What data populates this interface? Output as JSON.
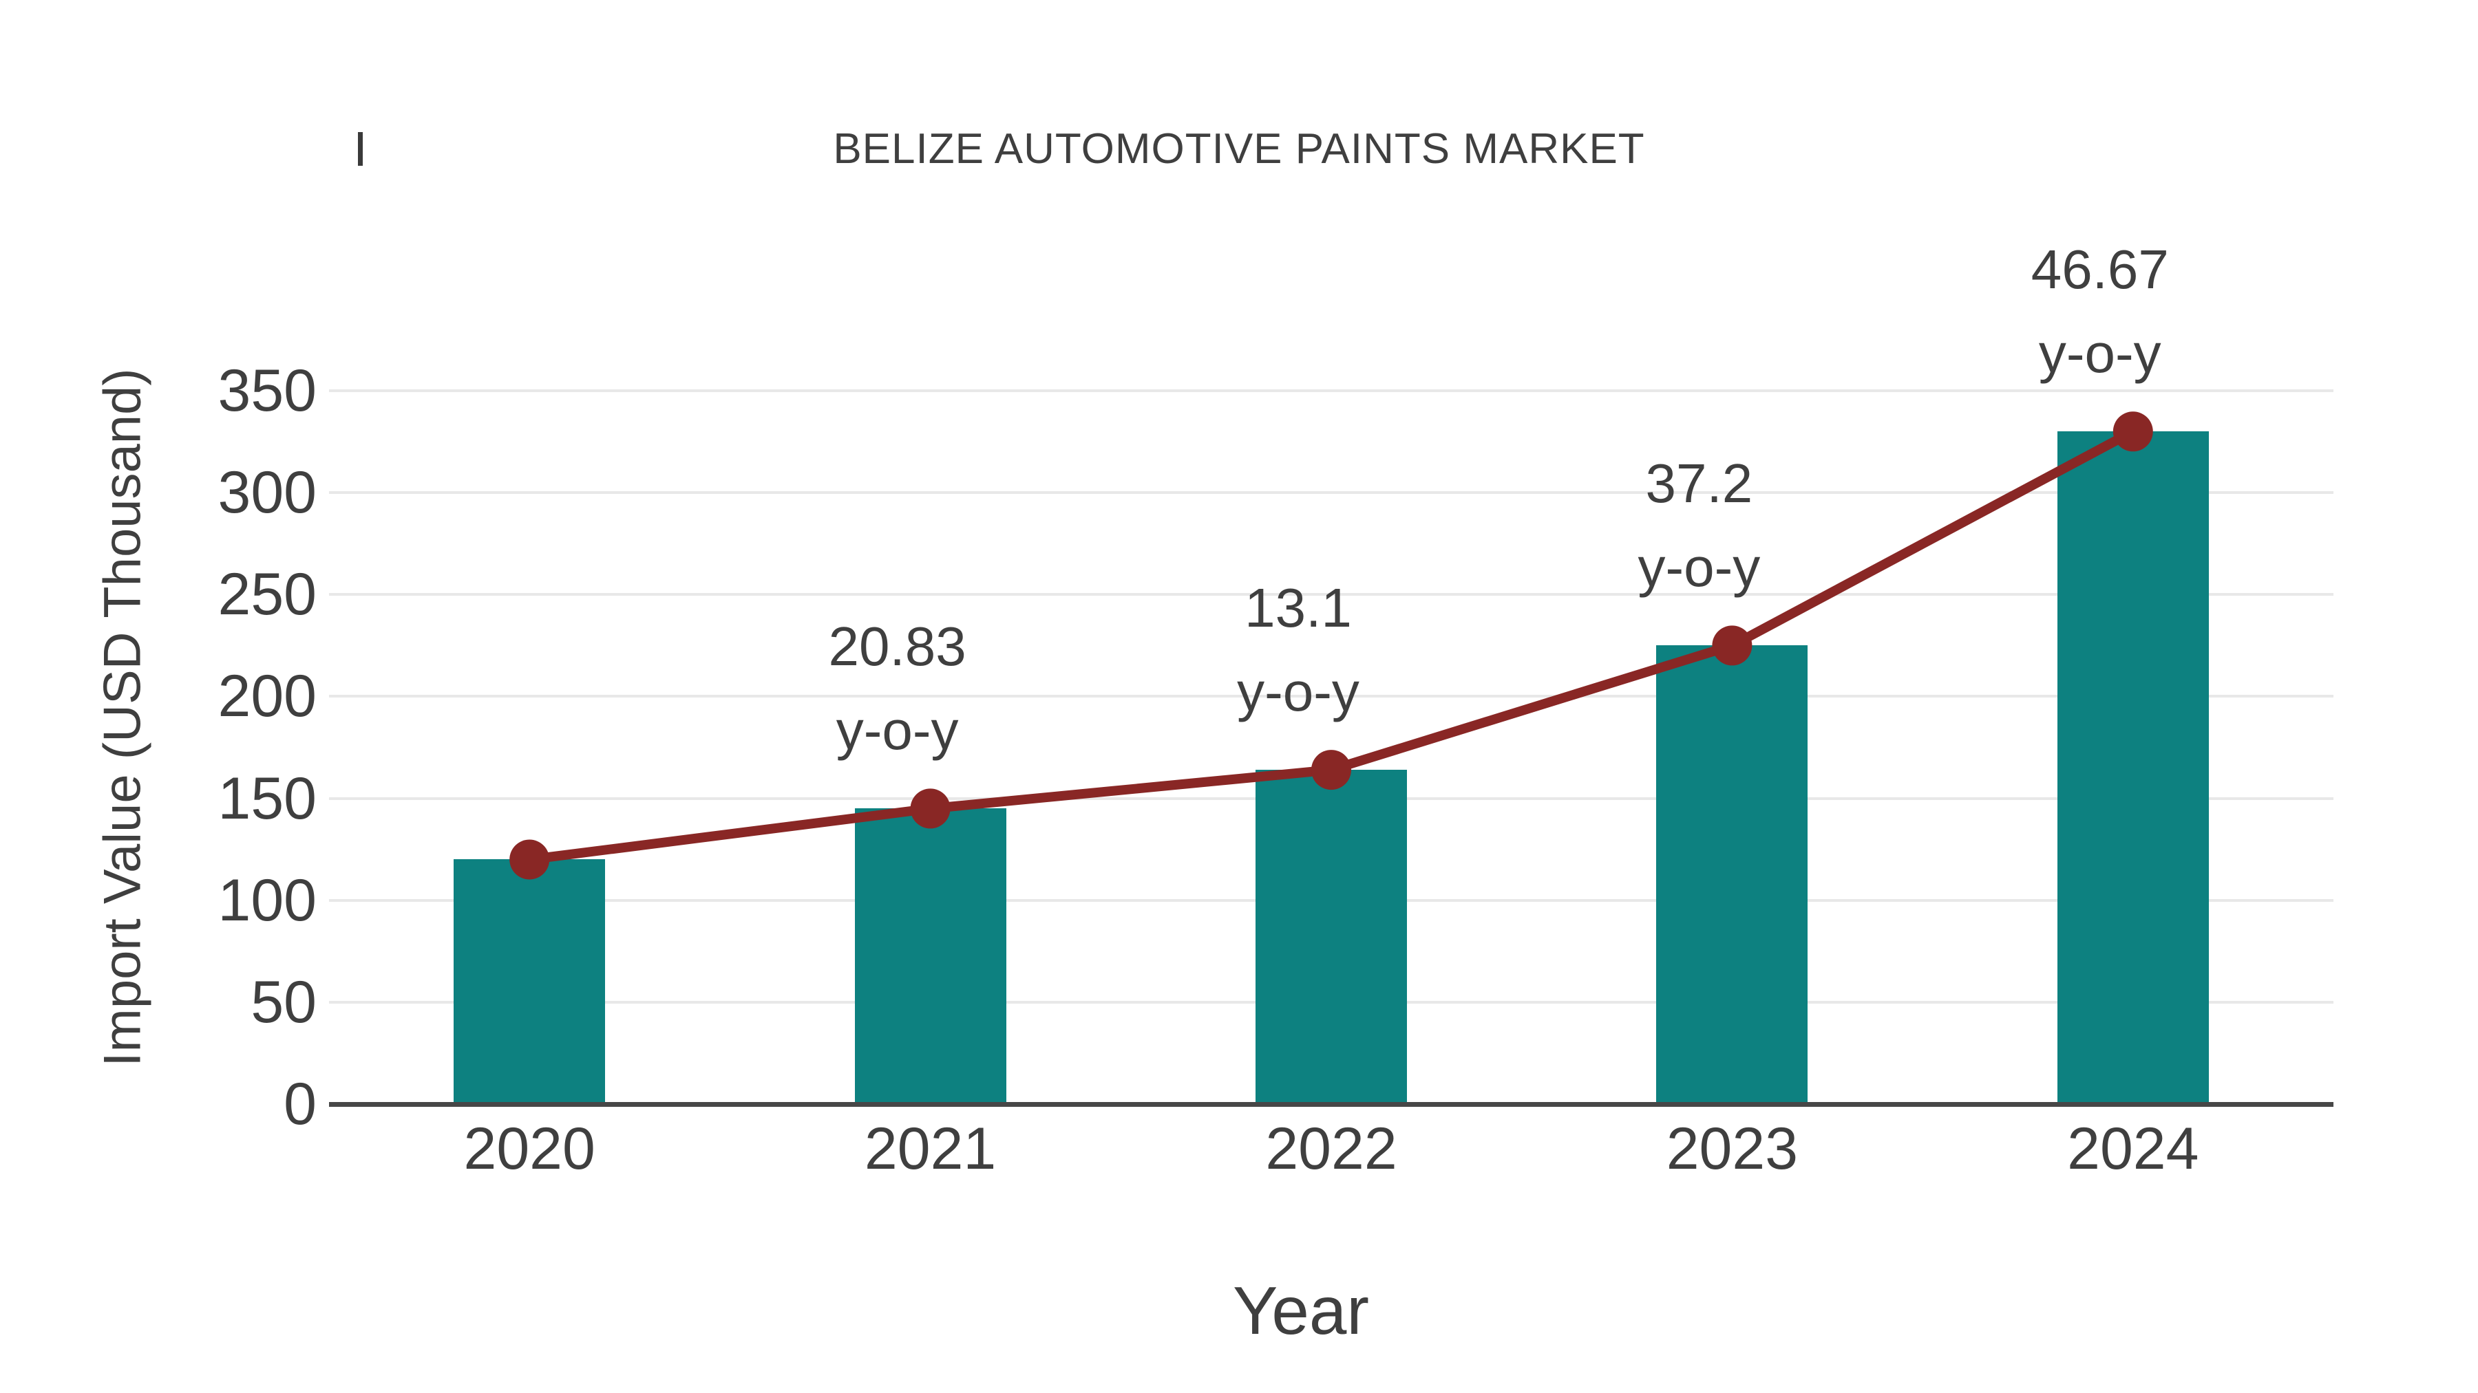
{
  "page": {
    "background": "#ffffff"
  },
  "colors": {
    "bar": "#0d8180",
    "line": "#892725",
    "marker": "#892725",
    "grid": "#e8e8e8",
    "axis": "#474747",
    "text": "#3f3f3f"
  },
  "chart_data": {
    "type": "bar",
    "title": "BELIZE AUTOMOTIVE PAINTS MARKET",
    "xlabel": "Year",
    "ylabel": "Import Value (USD Thousand)",
    "categories": [
      "2020",
      "2021",
      "2022",
      "2023",
      "2024"
    ],
    "series": [
      {
        "name": "Import Value",
        "type": "bar",
        "values": [
          120,
          145,
          164,
          225,
          330
        ],
        "color": "#0d8180"
      },
      {
        "name": "Import Value trend",
        "type": "line",
        "values": [
          120,
          145,
          164,
          225,
          330
        ],
        "color": "#892725",
        "markers": true
      }
    ],
    "annotations": [
      {
        "category": "2021",
        "value_label": "20.83",
        "suffix": "y-o-y"
      },
      {
        "category": "2022",
        "value_label": "13.1",
        "suffix": "y-o-y"
      },
      {
        "category": "2023",
        "value_label": "37.2",
        "suffix": "y-o-y"
      },
      {
        "category": "2024",
        "value_label": "46.67",
        "suffix": "y-o-y"
      }
    ],
    "yticks": [
      0,
      50,
      100,
      150,
      200,
      250,
      300,
      350
    ],
    "ylim": [
      0,
      350
    ],
    "grid": true,
    "legend_position": "none"
  }
}
